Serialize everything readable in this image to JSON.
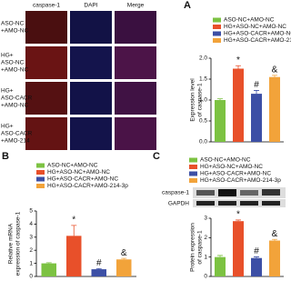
{
  "image_grid": {
    "columns": [
      "caspase-1",
      "DAPI",
      "Merge"
    ],
    "rows": [
      [
        "ASO-NC",
        "+AMO-NC"
      ],
      [
        "HG+",
        "ASO-NC",
        "+AMO-NC"
      ],
      [
        "HG+",
        "ASO-CACR",
        "+AMO-NC"
      ],
      [
        "HG+",
        "ASO-CACR",
        "+AMO-214"
      ]
    ]
  },
  "blot": {
    "labels": [
      "caspase-1",
      "GAPDH"
    ]
  },
  "chart_data": [
    {
      "type": "bar",
      "panel": "A",
      "ylabel": [
        "Expression level",
        "of caspase-1"
      ],
      "categories": [
        "ASO-NC+AMO-NC",
        "HG+ASO-NC+AMO-NC",
        "HG+ASO-CACR+AMO-NC",
        "HG+ASO-CACR+AMO-214-3p"
      ],
      "colors": [
        "#7cc242",
        "#e8502a",
        "#3c4fa5",
        "#f2a33a"
      ],
      "values": [
        1.0,
        1.75,
        1.15,
        1.55
      ],
      "errors": [
        0.03,
        0.07,
        0.08,
        0.04
      ],
      "annotations": [
        null,
        "*",
        "#",
        "&"
      ],
      "ylim": [
        0,
        2
      ],
      "yticks": [
        {
          "value": 0,
          "label": "0.0"
        },
        0.5,
        {
          "value": 1,
          "label": "1.0"
        },
        1.5,
        {
          "value": 2,
          "label": "2.0"
        }
      ]
    },
    {
      "type": "bar",
      "panel": "B",
      "ylabel": [
        "Relative mRNA",
        "expression of caspase-1"
      ],
      "categories": [
        "ASO-NC+AMO-NC",
        "HG+ASO-NC+AMO-NC",
        "HG+ASO-CACR+AMO-NC",
        "HG+ASO-CACR+AMO-214-3p"
      ],
      "colors": [
        "#7cc242",
        "#e8502a",
        "#3c4fa5",
        "#f2a33a"
      ],
      "values": [
        1.0,
        3.1,
        0.55,
        1.3
      ],
      "errors": [
        0.05,
        0.8,
        0.05,
        0.08
      ],
      "annotations": [
        null,
        "*",
        "#",
        "&"
      ],
      "ylim": [
        0,
        5
      ],
      "yticks": [
        0,
        1,
        2,
        3,
        4,
        5
      ]
    },
    {
      "type": "bar",
      "panel": "C",
      "ylabel": [
        "Protein expression",
        "of caspase-1"
      ],
      "categories": [
        "ASO-NC+AMO-NC",
        "HG+ASO-NC+AMO-NC",
        "HG+ASO-CACR+AMO-NC",
        "HG+ASO-CACR+AMO-214-3p"
      ],
      "colors": [
        "#7cc242",
        "#e8502a",
        "#3c4fa5",
        "#f2a33a"
      ],
      "values": [
        1.0,
        2.85,
        0.95,
        1.85
      ],
      "errors": [
        0.08,
        0.06,
        0.06,
        0.06
      ],
      "annotations": [
        null,
        "*",
        "#",
        "&"
      ],
      "ylim": [
        0,
        3
      ],
      "yticks": [
        0,
        1,
        2,
        3
      ]
    }
  ]
}
